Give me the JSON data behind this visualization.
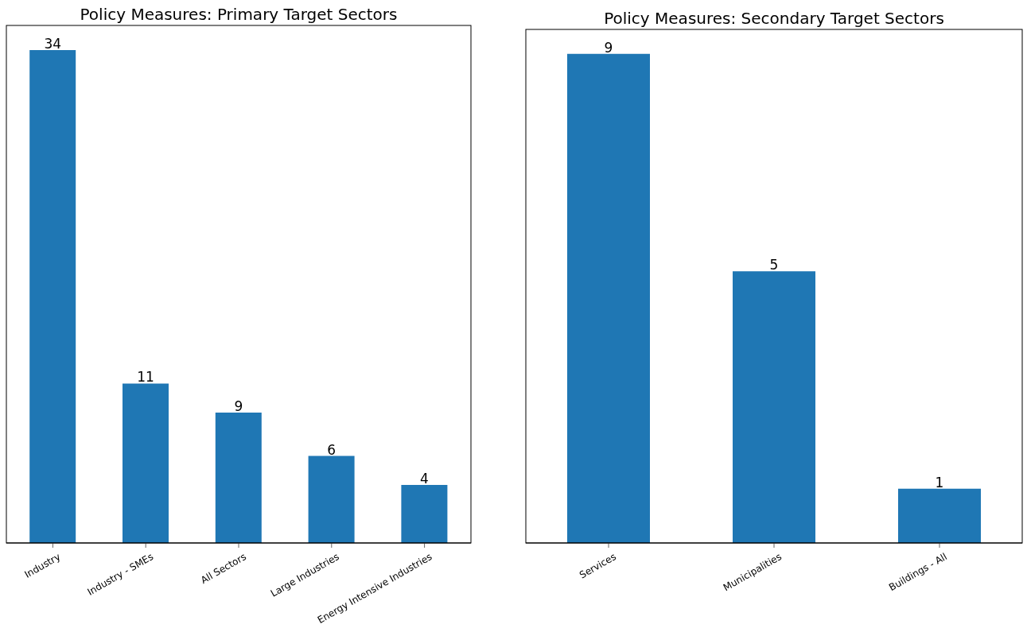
{
  "chart_data": [
    {
      "type": "bar",
      "title": "Policy Measures: Primary Target Sectors",
      "categories": [
        "Industry",
        "Industry - SMEs",
        "All Sectors",
        "Large Industries",
        "Energy Intensive Industries"
      ],
      "values": [
        34,
        11,
        9,
        6,
        4
      ],
      "color": "#1f77b4",
      "ylim": [
        0,
        35.7
      ],
      "data_labels": true,
      "tick_labels": "x",
      "grid": false
    },
    {
      "type": "bar",
      "title": "Policy Measures: Secondary Target Sectors",
      "categories": [
        "Services",
        "Municipalities",
        "Buildings - All"
      ],
      "values": [
        9,
        5,
        1
      ],
      "color": "#1f77b4",
      "ylim": [
        0,
        9.45
      ],
      "data_labels": true,
      "tick_labels": "x",
      "grid": false
    }
  ]
}
